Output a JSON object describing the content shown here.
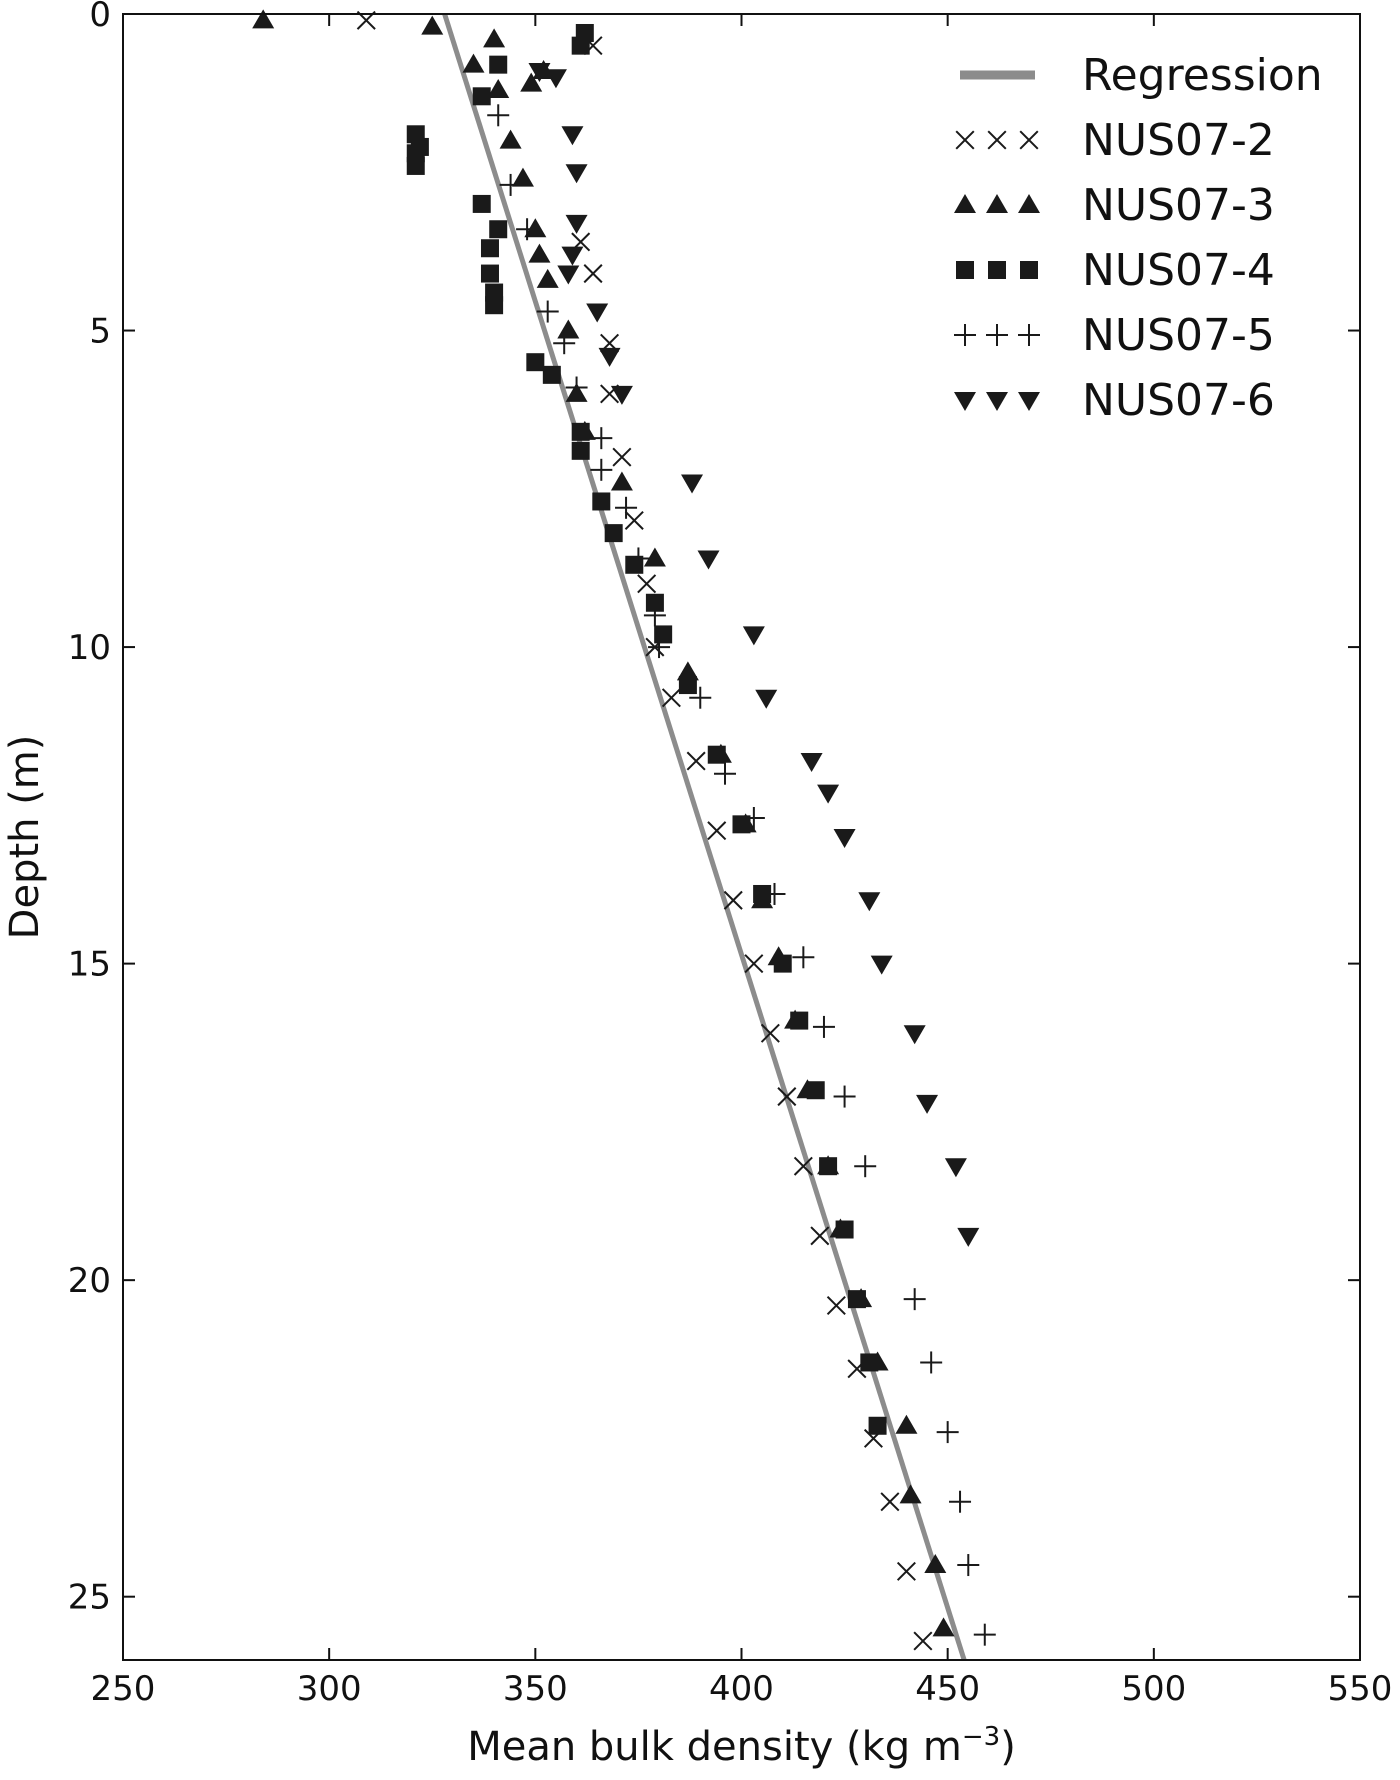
{
  "chart_data": {
    "type": "scatter",
    "xlabel": "Mean bulk density (kg m",
    "xlabel_sup": "−3",
    "xlabel_suffix": ")",
    "ylabel": "Depth (m)",
    "xlim": [
      250,
      550
    ],
    "ylim": [
      0,
      26
    ],
    "y_inverted": true,
    "xticks": [
      250,
      300,
      350,
      400,
      450,
      500,
      550
    ],
    "yticks": [
      0,
      5,
      10,
      15,
      20,
      25
    ],
    "legend_position": "top-right",
    "colors": {
      "regression": "#8c8c8c",
      "markers": "#1a1a1a"
    },
    "regression": {
      "name": "Regression",
      "points": [
        [
          328,
          0
        ],
        [
          454,
          26
        ]
      ]
    },
    "series": [
      {
        "name": "NUS07-2",
        "marker": "x",
        "points": [
          [
            309,
            0.1
          ],
          [
            364,
            0.5
          ],
          [
            361,
            3.6
          ],
          [
            364,
            4.1
          ],
          [
            368,
            5.2
          ],
          [
            368,
            6.0
          ],
          [
            371,
            7.0
          ],
          [
            374,
            8.0
          ],
          [
            377,
            9.0
          ],
          [
            379,
            10.0
          ],
          [
            383,
            10.8
          ],
          [
            389,
            11.8
          ],
          [
            394,
            12.9
          ],
          [
            398,
            14.0
          ],
          [
            403,
            15.0
          ],
          [
            407,
            16.1
          ],
          [
            411,
            17.1
          ],
          [
            415,
            18.2
          ],
          [
            419,
            19.3
          ],
          [
            423,
            20.4
          ],
          [
            428,
            21.4
          ],
          [
            432,
            22.5
          ],
          [
            436,
            23.5
          ],
          [
            440,
            24.6
          ],
          [
            444,
            25.7
          ]
        ]
      },
      {
        "name": "NUS07-3",
        "marker": "triangle-up",
        "points": [
          [
            284,
            0.1
          ],
          [
            325,
            0.2
          ],
          [
            340,
            0.4
          ],
          [
            335,
            0.8
          ],
          [
            341,
            1.2
          ],
          [
            349,
            1.1
          ],
          [
            352,
            0.9
          ],
          [
            344,
            2.0
          ],
          [
            347,
            2.6
          ],
          [
            350,
            3.4
          ],
          [
            351,
            3.8
          ],
          [
            353,
            4.2
          ],
          [
            358,
            5.0
          ],
          [
            360,
            6.0
          ],
          [
            362,
            6.6
          ],
          [
            371,
            7.4
          ],
          [
            379,
            8.6
          ],
          [
            387,
            10.4
          ],
          [
            395,
            11.7
          ],
          [
            401,
            12.8
          ],
          [
            405,
            14.0
          ],
          [
            409,
            14.9
          ],
          [
            413,
            15.9
          ],
          [
            416,
            17.0
          ],
          [
            421,
            18.2
          ],
          [
            424,
            19.2
          ],
          [
            429,
            20.3
          ],
          [
            433,
            21.3
          ],
          [
            440,
            22.3
          ],
          [
            441,
            23.4
          ],
          [
            447,
            24.5
          ],
          [
            449,
            25.5
          ]
        ]
      },
      {
        "name": "NUS07-4",
        "marker": "square",
        "points": [
          [
            362,
            0.3
          ],
          [
            361,
            0.5
          ],
          [
            341,
            0.8
          ],
          [
            337,
            1.3
          ],
          [
            321,
            1.9
          ],
          [
            322,
            2.1
          ],
          [
            321,
            2.2
          ],
          [
            321,
            2.4
          ],
          [
            337,
            3.0
          ],
          [
            341,
            3.4
          ],
          [
            339,
            3.7
          ],
          [
            339,
            4.1
          ],
          [
            340,
            4.4
          ],
          [
            340,
            4.6
          ],
          [
            350,
            5.5
          ],
          [
            354,
            5.7
          ],
          [
            361,
            6.6
          ],
          [
            361,
            6.9
          ],
          [
            366,
            7.7
          ],
          [
            369,
            8.2
          ],
          [
            374,
            8.7
          ],
          [
            379,
            9.3
          ],
          [
            381,
            9.8
          ],
          [
            387,
            10.6
          ],
          [
            394,
            11.7
          ],
          [
            400,
            12.8
          ],
          [
            405,
            13.9
          ],
          [
            410,
            15.0
          ],
          [
            414,
            15.9
          ],
          [
            418,
            17.0
          ],
          [
            421,
            18.2
          ],
          [
            425,
            19.2
          ],
          [
            428,
            20.3
          ],
          [
            431,
            21.3
          ],
          [
            433,
            22.3
          ]
        ]
      },
      {
        "name": "NUS07-5",
        "marker": "plus",
        "points": [
          [
            341,
            1.6
          ],
          [
            344,
            2.7
          ],
          [
            348,
            3.4
          ],
          [
            353,
            4.7
          ],
          [
            357,
            5.2
          ],
          [
            360,
            5.9
          ],
          [
            366,
            6.7
          ],
          [
            366,
            7.2
          ],
          [
            372,
            7.8
          ],
          [
            375,
            8.6
          ],
          [
            379,
            9.5
          ],
          [
            380,
            10.0
          ],
          [
            390,
            10.8
          ],
          [
            396,
            12.0
          ],
          [
            403,
            12.7
          ],
          [
            408,
            13.9
          ],
          [
            415,
            14.9
          ],
          [
            420,
            16.0
          ],
          [
            425,
            17.1
          ],
          [
            430,
            18.2
          ],
          [
            442,
            20.3
          ],
          [
            446,
            21.3
          ],
          [
            450,
            22.4
          ],
          [
            453,
            23.5
          ],
          [
            455,
            24.5
          ],
          [
            459,
            25.6
          ]
        ]
      },
      {
        "name": "NUS07-6",
        "marker": "triangle-down",
        "points": [
          [
            351,
            0.9
          ],
          [
            355,
            1.0
          ],
          [
            359,
            1.9
          ],
          [
            360,
            2.5
          ],
          [
            360,
            3.3
          ],
          [
            359,
            3.8
          ],
          [
            358,
            4.1
          ],
          [
            365,
            4.7
          ],
          [
            368,
            5.4
          ],
          [
            371,
            6.0
          ],
          [
            388,
            7.4
          ],
          [
            392,
            8.6
          ],
          [
            403,
            9.8
          ],
          [
            406,
            10.8
          ],
          [
            417,
            11.8
          ],
          [
            421,
            12.3
          ],
          [
            425,
            13.0
          ],
          [
            431,
            14.0
          ],
          [
            434,
            15.0
          ],
          [
            442,
            16.1
          ],
          [
            445,
            17.2
          ],
          [
            452,
            18.2
          ],
          [
            455,
            19.3
          ]
        ]
      }
    ]
  }
}
